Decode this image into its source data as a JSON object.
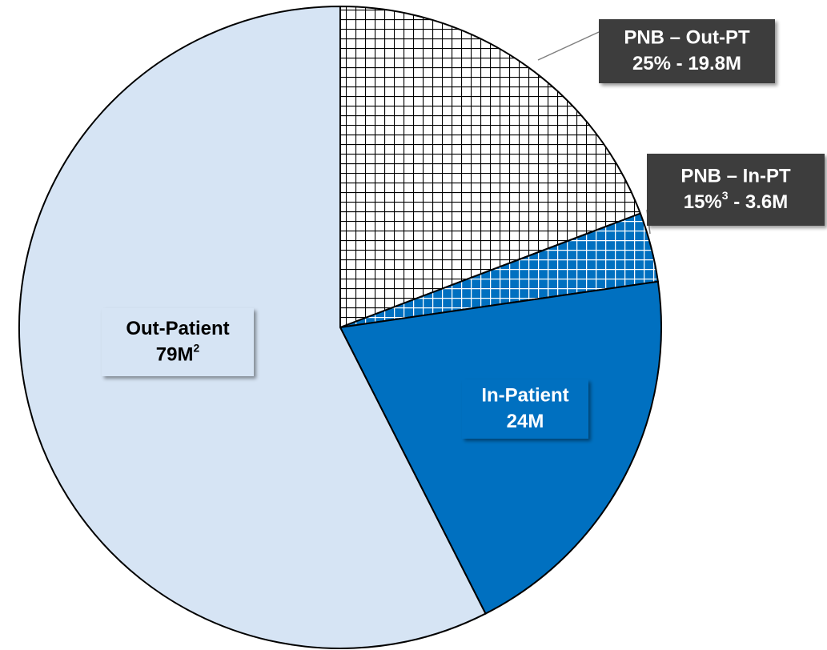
{
  "chart_data": {
    "type": "pie",
    "categories": [
      "PNB – Out-PT",
      "PNB – In-PT",
      "In-Patient",
      "Out-Patient"
    ],
    "values": [
      19.8,
      3.6,
      20.4,
      59.2
    ],
    "colors": [
      "#ffffff",
      "#0070c0",
      "#0070c0",
      "#d6e4f4"
    ],
    "hatched": [
      true,
      true,
      false,
      false
    ],
    "annotations": [
      {
        "parts": [
          "25% - 19.8M"
        ]
      },
      {
        "parts": [
          "15%",
          "3",
          " - 3.6M"
        ]
      },
      {
        "parts": [
          "24M"
        ]
      },
      {
        "parts": [
          "79M",
          "2"
        ]
      }
    ]
  }
}
